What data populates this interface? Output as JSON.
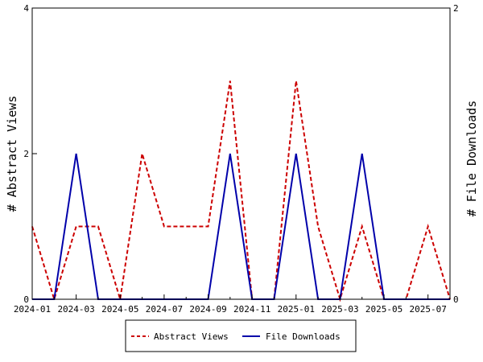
{
  "chart_data": {
    "type": "line",
    "x": [
      "2024-01",
      "2024-02",
      "2024-03",
      "2024-04",
      "2024-05",
      "2024-06",
      "2024-07",
      "2024-08",
      "2024-09",
      "2024-10",
      "2024-11",
      "2024-12",
      "2025-01",
      "2025-02",
      "2025-03",
      "2025-04",
      "2025-05",
      "2025-06",
      "2025-07",
      "2025-08"
    ],
    "x_tick_labels": [
      "2024-01",
      "2024-03",
      "2024-05",
      "2024-07",
      "2024-09",
      "2024-11",
      "2025-01",
      "2025-03",
      "2025-05",
      "2025-07"
    ],
    "series": [
      {
        "name": "Abstract Views",
        "axis": "left",
        "color": "#cc0000",
        "style": "dashed",
        "values": [
          1,
          0,
          1,
          1,
          0,
          2,
          1,
          1,
          1,
          3,
          0,
          0,
          3,
          1,
          0,
          1,
          0,
          0,
          1,
          0
        ]
      },
      {
        "name": "File Downloads",
        "axis": "right",
        "color": "#0000aa",
        "style": "solid",
        "values": [
          0,
          0,
          1,
          0,
          0,
          0,
          0,
          0,
          0,
          1,
          0,
          0,
          1,
          0,
          0,
          1,
          0,
          0,
          0,
          0
        ]
      }
    ],
    "ylabel": "# Abstract Views",
    "y2label": "# File Downloads",
    "ylim": [
      0,
      4
    ],
    "y2lim": [
      0,
      2
    ],
    "y_ticks": [
      "0",
      "2",
      "4"
    ],
    "y2_ticks": [
      "0",
      "2"
    ],
    "grid": false,
    "legend": "bottom"
  }
}
